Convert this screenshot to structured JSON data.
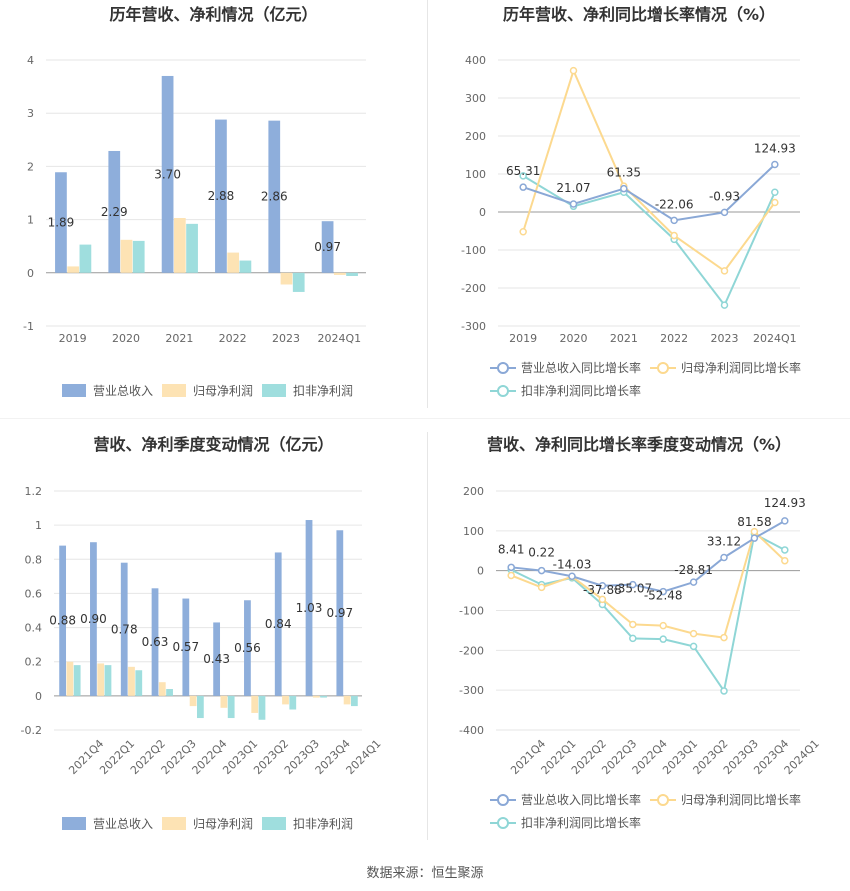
{
  "source": "数据来源：恒生聚源",
  "colors": {
    "revenue": "#8eaedb",
    "parent_np": "#fde3b4",
    "deducted_np": "#9fdede",
    "revenue_line": "#8aa8d6",
    "parent_line": "#fcd98f",
    "deducted_line": "#8fd6d6"
  },
  "chart_data": [
    {
      "type": "bar",
      "title": "历年营收、净利情况（亿元）",
      "categories": [
        "2019",
        "2020",
        "2021",
        "2022",
        "2023",
        "2024Q1"
      ],
      "ylim": [
        -1,
        4
      ],
      "yticks": [
        -1,
        0,
        1,
        2,
        3,
        4
      ],
      "grid": true,
      "legend": "bottom",
      "series": [
        {
          "name": "营业总收入",
          "values": [
            1.89,
            2.29,
            3.7,
            2.88,
            2.86,
            0.97
          ],
          "labels": [
            "1.89",
            "2.29",
            "3.70",
            "2.88",
            "2.86",
            "0.97"
          ]
        },
        {
          "name": "归母净利润",
          "values": [
            0.12,
            0.62,
            1.03,
            0.38,
            -0.22,
            -0.04
          ]
        },
        {
          "name": "扣非净利润",
          "values": [
            0.53,
            0.6,
            0.92,
            0.23,
            -0.36,
            -0.06
          ]
        }
      ]
    },
    {
      "type": "line",
      "title": "历年营收、净利同比增长率情况（%）",
      "categories": [
        "2019",
        "2020",
        "2021",
        "2022",
        "2023",
        "2024Q1"
      ],
      "ylim": [
        -300,
        400
      ],
      "yticks": [
        -300,
        -200,
        -100,
        0,
        100,
        200,
        300,
        400
      ],
      "grid": true,
      "legend": "bottom",
      "series": [
        {
          "name": "营业总收入同比增长率",
          "values": [
            65.31,
            21.07,
            61.35,
            -22.06,
            -0.93,
            124.93
          ],
          "labels": [
            "65.31",
            "21.07",
            "61.35",
            "-22.06",
            "-0.93",
            "124.93"
          ]
        },
        {
          "name": "归母净利润同比增长率",
          "values": [
            -52,
            372,
            68,
            -62,
            -155,
            25
          ]
        },
        {
          "name": "扣非净利润同比增长率",
          "values": [
            95,
            15,
            52,
            -72,
            -245,
            52
          ]
        }
      ]
    },
    {
      "type": "bar",
      "title": "营收、净利季度变动情况（亿元）",
      "categories": [
        "2021Q4",
        "2022Q1",
        "2022Q2",
        "2022Q3",
        "2022Q4",
        "2023Q1",
        "2023Q2",
        "2023Q3",
        "2023Q4",
        "2024Q1"
      ],
      "ylim": [
        -0.2,
        1.2
      ],
      "yticks": [
        -0.2,
        0,
        0.2,
        0.4,
        0.6,
        0.8,
        1,
        1.2
      ],
      "grid": true,
      "legend": "bottom",
      "series": [
        {
          "name": "营业总收入",
          "values": [
            0.88,
            0.9,
            0.78,
            0.63,
            0.57,
            0.43,
            0.56,
            0.84,
            1.03,
            0.97
          ],
          "labels": [
            "0.88",
            "0.90",
            "0.78",
            "0.63",
            "0.57",
            "0.43",
            "0.56",
            "0.84",
            "1.03",
            "0.97"
          ]
        },
        {
          "name": "归母净利润",
          "values": [
            0.2,
            0.19,
            0.17,
            0.08,
            -0.06,
            -0.07,
            -0.1,
            -0.05,
            -0.01,
            -0.05
          ]
        },
        {
          "name": "扣非净利润",
          "values": [
            0.18,
            0.18,
            0.15,
            0.04,
            -0.13,
            -0.13,
            -0.14,
            -0.08,
            -0.01,
            -0.06
          ]
        }
      ]
    },
    {
      "type": "line",
      "title": "营收、净利同比增长率季度变动情况（%）",
      "categories": [
        "2021Q4",
        "2022Q1",
        "2022Q2",
        "2022Q3",
        "2022Q4",
        "2023Q1",
        "2023Q2",
        "2023Q3",
        "2023Q4",
        "2024Q1"
      ],
      "ylim": [
        -400,
        200
      ],
      "yticks": [
        -400,
        -300,
        -200,
        -100,
        0,
        100,
        200
      ],
      "grid": true,
      "legend": "bottom",
      "series": [
        {
          "name": "营业总收入同比增长率",
          "values": [
            8.41,
            0.22,
            -14.03,
            -37.88,
            -35.07,
            -52.48,
            -28.81,
            33.12,
            81.58,
            124.93
          ],
          "labels": [
            "8.41",
            "0.22",
            "-14.03",
            "-37.88",
            "-35.07",
            "-52.48",
            "-28.81",
            "33.12",
            "81.58",
            "124.93"
          ]
        },
        {
          "name": "归母净利润同比增长率",
          "values": [
            -12,
            -42,
            -15,
            -72,
            -135,
            -138,
            -158,
            -168,
            98,
            25
          ]
        },
        {
          "name": "扣非净利润同比增长率",
          "values": [
            2,
            -35,
            -18,
            -85,
            -170,
            -172,
            -190,
            -302,
            92,
            52
          ]
        }
      ]
    }
  ]
}
